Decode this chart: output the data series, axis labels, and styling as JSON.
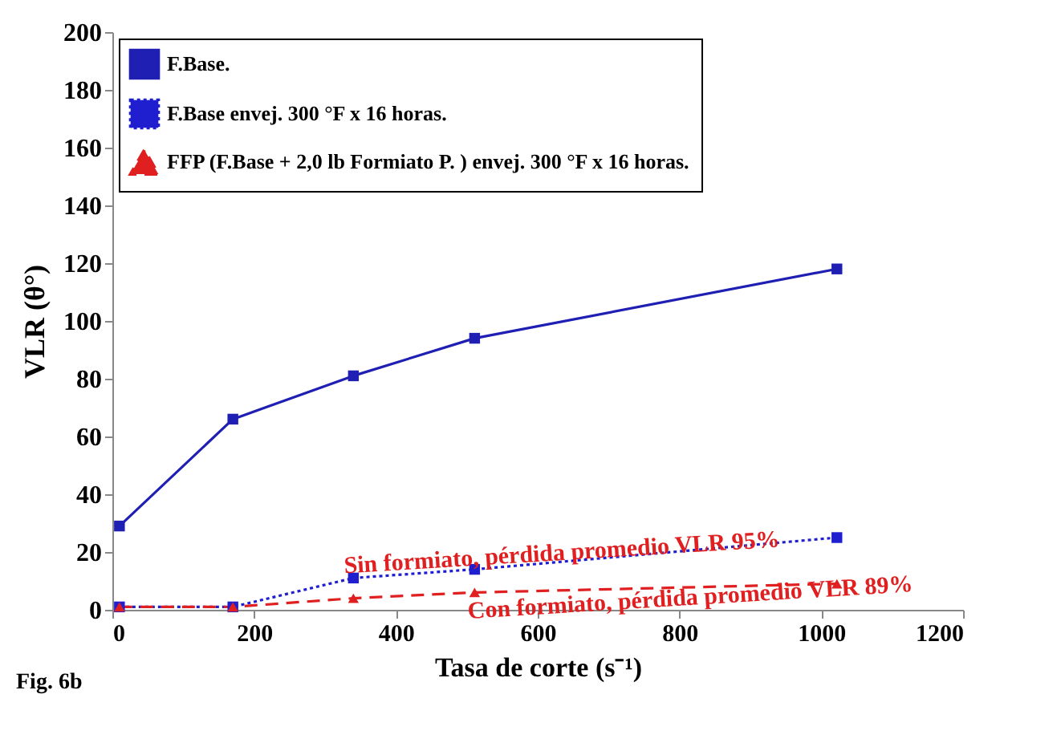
{
  "chart_data": {
    "type": "line",
    "xlabel": "Tasa de corte (s⁻¹)",
    "ylabel": "VLR (θ°)",
    "x": [
      10,
      170,
      340,
      511,
      1022
    ],
    "series": [
      {
        "name": "F.Base.",
        "color": "#1f1fb4",
        "values": [
          29,
          66,
          81,
          94,
          118
        ],
        "marker": "square",
        "line_style": "solid"
      },
      {
        "name": "F.Base envej. 300 °F x 16 horas.",
        "color": "#1f1fd0",
        "values": [
          1,
          1,
          11,
          14,
          25
        ],
        "marker": "square",
        "line_style": "dotted"
      },
      {
        "name": "FFP (F.Base + 2,0 lb Formiato P. ) envej. 300 °F x 16 horas.",
        "color": "#e02020",
        "values": [
          1,
          1,
          4,
          6,
          9
        ],
        "marker": "triangle",
        "line_style": "dashed"
      }
    ],
    "xlim": [
      0,
      1200
    ],
    "xticks": [
      0,
      200,
      400,
      600,
      800,
      1000,
      1200
    ],
    "ylim": [
      0,
      200
    ],
    "yticks": [
      0,
      20,
      40,
      60,
      80,
      100,
      120,
      140,
      160,
      180,
      200
    ],
    "grid": false,
    "legend": "top left",
    "annotations": [
      "Sin formiato,  pérdida promedio VLR  95%",
      "Con formiato,  pérdida promedio VLR 89%",
      "Fig.  6b"
    ]
  }
}
